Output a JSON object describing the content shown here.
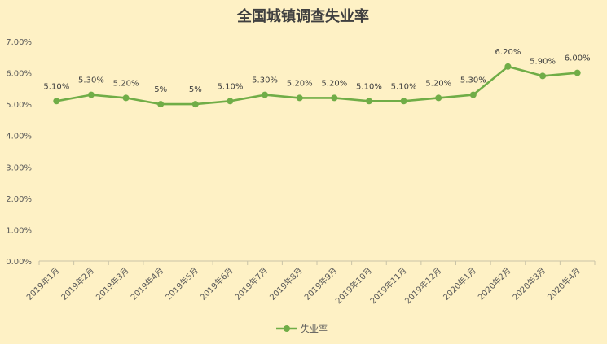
{
  "chart_data": {
    "type": "line",
    "title": "全国城镇调查失业率",
    "categories": [
      "2019年1月",
      "2019年2月",
      "2019年3月",
      "2019年4月",
      "2019年5月",
      "2019年6月",
      "2019年7月",
      "2019年8月",
      "2019年9月",
      "2019年10月",
      "2019年11月",
      "2019年12月",
      "2020年1月",
      "2020年2月",
      "2020年3月",
      "2020年4月"
    ],
    "series": [
      {
        "name": "失业率",
        "values": [
          5.1,
          5.3,
          5.2,
          5.0,
          5.0,
          5.1,
          5.3,
          5.2,
          5.2,
          5.1,
          5.1,
          5.2,
          5.3,
          6.2,
          5.9,
          6.0
        ],
        "labels": [
          "5.10%",
          "5.30%",
          "5.20%",
          "5%",
          "5%",
          "5.10%",
          "5.30%",
          "5.20%",
          "5.20%",
          "5.10%",
          "5.10%",
          "5.20%",
          "5.30%",
          "6.20%",
          "5.90%",
          "6.00%"
        ]
      }
    ],
    "ylim": [
      0,
      7
    ],
    "yticks": [
      0,
      1,
      2,
      3,
      4,
      5,
      6,
      7
    ],
    "ytick_labels": [
      "0.00%",
      "1.00%",
      "2.00%",
      "3.00%",
      "4.00%",
      "5.00%",
      "6.00%",
      "7.00%"
    ],
    "grid": false,
    "legend_position": "bottom",
    "colors": {
      "background": "#FEF1C5",
      "line": "#70AD47",
      "axis": "#C9C3A6",
      "text": "#595959",
      "title": "#404040"
    }
  }
}
